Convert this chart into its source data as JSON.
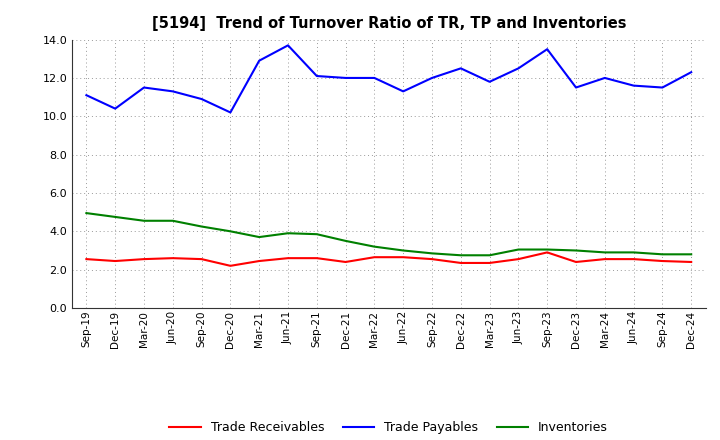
{
  "title": "[5194]  Trend of Turnover Ratio of TR, TP and Inventories",
  "x_labels": [
    "Sep-19",
    "Dec-19",
    "Mar-20",
    "Jun-20",
    "Sep-20",
    "Dec-20",
    "Mar-21",
    "Jun-21",
    "Sep-21",
    "Dec-21",
    "Mar-22",
    "Jun-22",
    "Sep-22",
    "Dec-22",
    "Mar-23",
    "Jun-23",
    "Sep-23",
    "Dec-23",
    "Mar-24",
    "Jun-24",
    "Sep-24",
    "Dec-24"
  ],
  "trade_receivables": [
    2.55,
    2.45,
    2.55,
    2.6,
    2.55,
    2.2,
    2.45,
    2.6,
    2.6,
    2.4,
    2.65,
    2.65,
    2.55,
    2.35,
    2.35,
    2.55,
    2.9,
    2.4,
    2.55,
    2.55,
    2.45,
    2.4
  ],
  "trade_payables": [
    11.1,
    10.4,
    11.5,
    11.3,
    10.9,
    10.2,
    12.9,
    13.7,
    12.1,
    12.0,
    12.0,
    11.3,
    12.0,
    12.5,
    11.8,
    12.5,
    13.5,
    11.5,
    12.0,
    11.6,
    11.5,
    12.3
  ],
  "inventories": [
    4.95,
    4.75,
    4.55,
    4.55,
    4.25,
    4.0,
    3.7,
    3.9,
    3.85,
    3.5,
    3.2,
    3.0,
    2.85,
    2.75,
    2.75,
    3.05,
    3.05,
    3.0,
    2.9,
    2.9,
    2.8,
    2.8
  ],
  "ylim": [
    0.0,
    14.0
  ],
  "yticks": [
    0.0,
    2.0,
    4.0,
    6.0,
    8.0,
    10.0,
    12.0,
    14.0
  ],
  "colors": {
    "trade_receivables": "#ff0000",
    "trade_payables": "#0000ff",
    "inventories": "#008000"
  },
  "legend_labels": [
    "Trade Receivables",
    "Trade Payables",
    "Inventories"
  ],
  "background_color": "#ffffff",
  "grid_color": "#999999"
}
